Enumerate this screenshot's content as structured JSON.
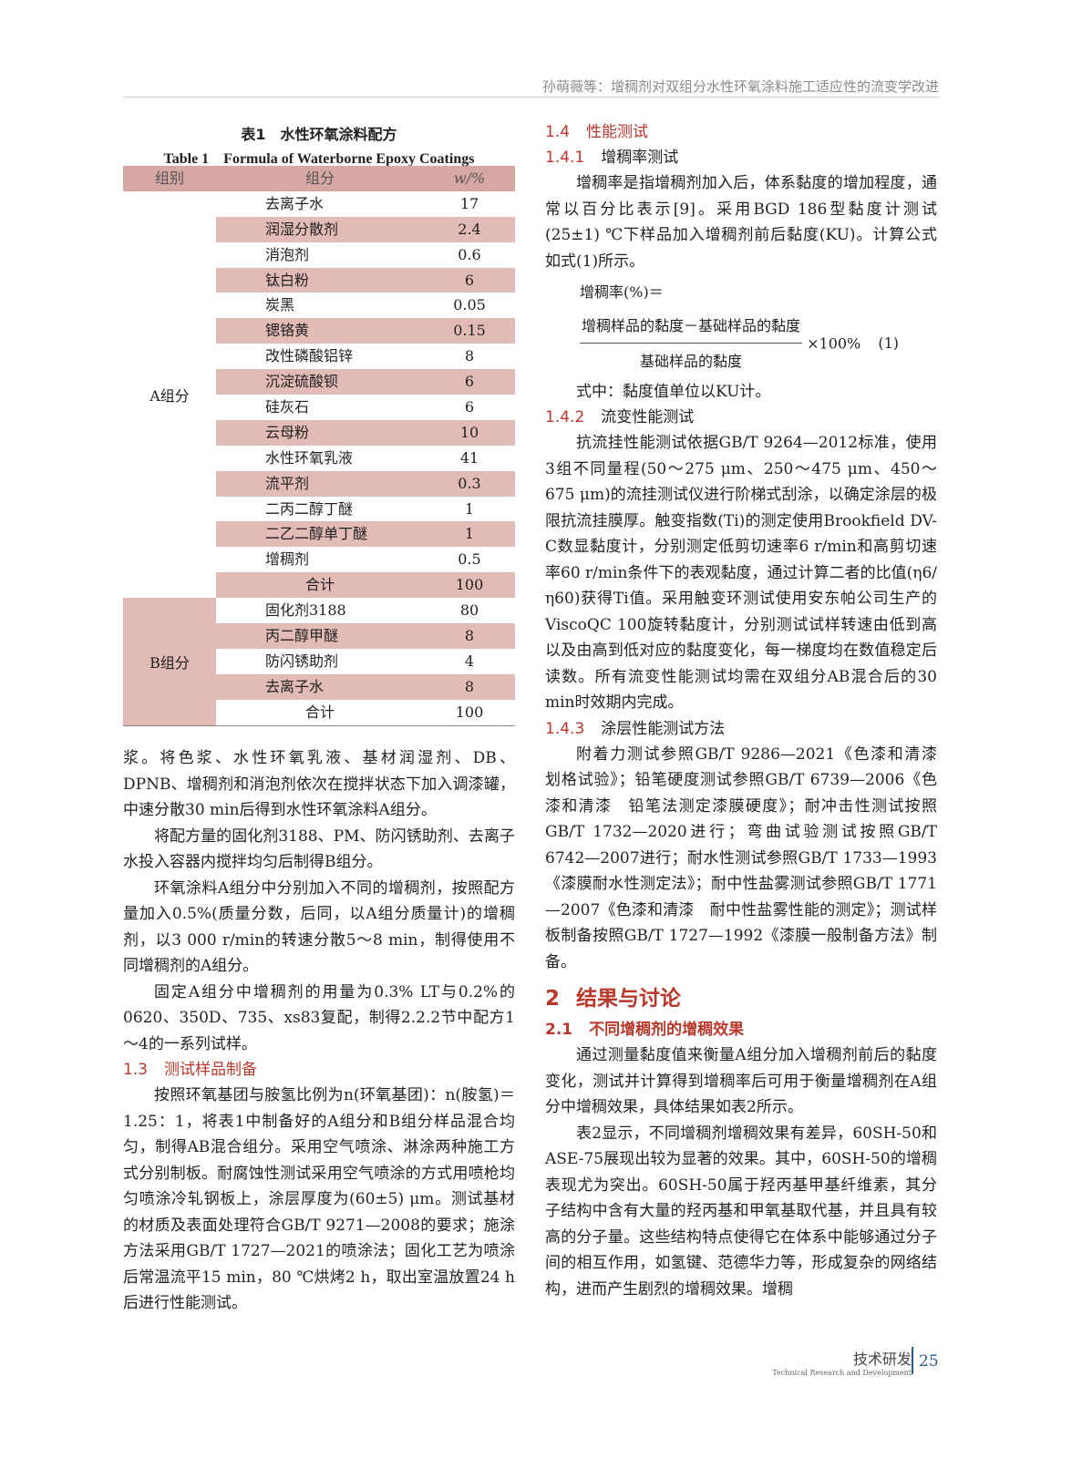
{
  "running_head": "孙萌薇等：增稠剂对双组分水性环氧涂料施工适应性的流变学改进",
  "table": {
    "caption_cn": "表1　水性环氧涂料配方",
    "caption_en": "Table 1　Formula of Waterborne Epoxy Coatings",
    "headers": [
      "组别",
      "组分",
      "w/%"
    ],
    "groups": [
      {
        "label": "A组分",
        "rows": [
          [
            "去离子水",
            "17"
          ],
          [
            "润湿分散剂",
            "2.4"
          ],
          [
            "消泡剂",
            "0.6"
          ],
          [
            "钛白粉",
            "6"
          ],
          [
            "炭黑",
            "0.05"
          ],
          [
            "锶铬黄",
            "0.15"
          ],
          [
            "改性磷酸铝锌",
            "8"
          ],
          [
            "沉淀硫酸钡",
            "6"
          ],
          [
            "硅灰石",
            "6"
          ],
          [
            "云母粉",
            "10"
          ],
          [
            "水性环氧乳液",
            "41"
          ],
          [
            "流平剂",
            "0.3"
          ],
          [
            "二丙二醇丁醚",
            "1"
          ],
          [
            "二乙二醇单丁醚",
            "1"
          ],
          [
            "增稠剂",
            "0.5"
          ],
          [
            "合计",
            "100"
          ]
        ]
      },
      {
        "label": "B组分",
        "rows": [
          [
            "固化剂3188",
            "80"
          ],
          [
            "丙二醇甲醚",
            "8"
          ],
          [
            "防闪锈助剂",
            "4"
          ],
          [
            "去离子水",
            "8"
          ],
          [
            "合计",
            "100"
          ]
        ]
      }
    ]
  },
  "left": {
    "p1": "浆。将色浆、水性环氧乳液、基材润湿剂、DB、DPNB、增稠剂和消泡剂依次在搅拌状态下加入调漆罐，中速分散30 min后得到水性环氧涂料A组分。",
    "p2": "将配方量的固化剂3188、PM、防闪锈助剂、去离子水投入容器内搅拌均匀后制得B组分。",
    "p3": "环氧涂料A组分中分别加入不同的增稠剂，按照配方量加入0.5%(质量分数，后同，以A组分质量计)的增稠剂，以3 000 r/min的转速分散5～8 min，制得使用不同增稠剂的A组分。",
    "p4": "固定A组分中增稠剂的用量为0.3% LT与0.2%的0620、350D、735、xs83复配，制得2.2.2节中配方1～4的一系列试样。",
    "h13_num": "1.3",
    "h13": "测试样品制备",
    "p5": "按照环氧基团与胺氢比例为n(环氧基团)：n(胺氢)＝1.25：1，将表1中制备好的A组分和B组分样品混合均匀，制得AB混合组分。采用空气喷涂、淋涂两种施工方式分别制板。耐腐蚀性测试采用空气喷涂的方式用喷枪均匀喷涂冷轧钢板上，涂层厚度为(60±5) μm。测试基材的材质及表面处理符合GB/T 9271—2008的要求；施涂方法采用GB/T 1727—2021的喷涂法；固化工艺为喷涂后常温流平15 min，80 ℃烘烤2 h，取出室温放置24 h后进行性能测试。"
  },
  "right": {
    "h14_num": "1.4",
    "h14": "性能测试",
    "h141_num": "1.4.1",
    "h141": "增稠率测试",
    "p1": "增稠率是指增稠剂加入后，体系黏度的增加程度，通常以百分比表示[9]。采用BGD 186型黏度计测试(25±1) ℃下样品加入增稠剂前后黏度(KU)。计算公式如式(1)所示。",
    "formula": {
      "lhs": "增稠率(%)＝",
      "numerator": "增稠样品的黏度－基础样品的黏度",
      "denominator": "基础样品的黏度",
      "factor": "×100%",
      "eq_no": "(1)"
    },
    "p2": "式中：黏度值单位以KU计。",
    "h142_num": "1.4.2",
    "h142": "流变性能测试",
    "p3": "抗流挂性能测试依据GB/T 9264—2012标准，使用3组不同量程(50～275 μm、250～475 μm、450～675 μm)的流挂测试仪进行阶梯式刮涂，以确定涂层的极限抗流挂膜厚。触变指数(Ti)的测定使用Brookfield DV-C数显黏度计，分别测定低剪切速率6 r/min和高剪切速率60 r/min条件下的表观黏度，通过计算二者的比值(η6/η60)获得Ti值。采用触变环测试使用安东帕公司生产的ViscoQC 100旋转黏度计，分别测试试样转速由低到高以及由高到低对应的黏度变化，每一梯度均在数值稳定后读数。所有流变性能测试均需在双组分AB混合后的30 min时效期内完成。",
    "h143_num": "1.4.3",
    "h143": "涂层性能测试方法",
    "p4": "附着力测试参照GB/T 9286—2021《色漆和清漆　划格试验》；铅笔硬度测试参照GB/T 6739—2006《色漆和清漆　铅笔法测定漆膜硬度》；耐冲击性测试按照GB/T 1732—2020进行；弯曲试验测试按照GB/T 6742—2007进行；耐水性测试参照GB/T 1733—1993《漆膜耐水性测定法》；耐中性盐雾测试参照GB/T 1771—2007《色漆和清漆　耐中性盐雾性能的测定》；测试样板制备按照GB/T 1727—1992《漆膜一般制备方法》制备。",
    "h2_num": "2",
    "h2": "结果与讨论",
    "h21_num": "2.1",
    "h21": "不同增稠剂的增稠效果",
    "p5": "通过测量黏度值来衡量A组分加入增稠剂前后的黏度变化，测试并计算得到增稠率后可用于衡量增稠剂在A组分中增稠效果，具体结果如表2所示。",
    "p6": "表2显示，不同增稠剂增稠效果有差异，60SH-50和ASE-75展现出较为显著的效果。其中，60SH-50的增稠表现尤为突出。60SH-50属于羟丙基甲基纤维素，其分子结构中含有大量的羟丙基和甲氧基取代基，并且具有较高的分子量。这些结构特点使得它在体系中能够通过分子间的相互作用，如氢键、范德华力等，形成复杂的网络结构，进而产生剧烈的增稠效果。增稠"
  },
  "footer": {
    "section_cn": "技术研发",
    "section_en": "Technical Research and Development",
    "page": "25"
  },
  "colors": {
    "accent": "#b8382c",
    "table_header": "#d7a8a3",
    "table_shade": "#e2bbb6",
    "page_number": "#2a5a8a"
  }
}
